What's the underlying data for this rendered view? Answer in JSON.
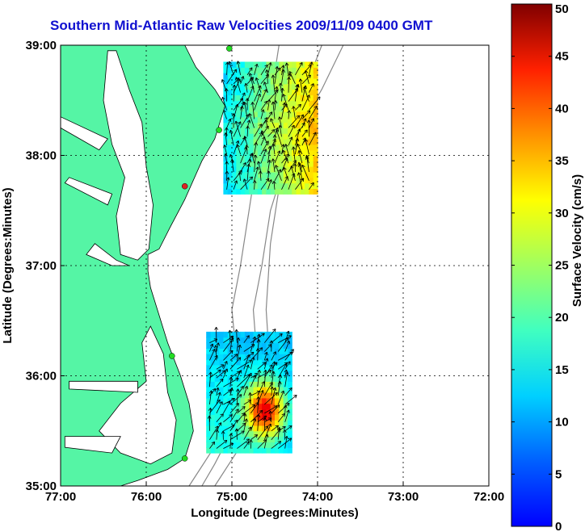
{
  "title": "Southern Mid-Atlantic Raw Velocities 2009/11/09 0400 GMT",
  "map": {
    "xlabel": "Longitude (Degrees:Minutes)",
    "ylabel": "Latitude (Degrees:Minutes)",
    "x_ticks": [
      "77:00",
      "76:00",
      "75:00",
      "74:00",
      "73:00",
      "72:00"
    ],
    "y_ticks": [
      "39:00",
      "38:00",
      "37:00",
      "36:00",
      "35:00"
    ],
    "lon_range": [
      -77,
      -72
    ],
    "lat_range": [
      35,
      39
    ],
    "grid": true,
    "land_color": "#55f5a5",
    "ocean_color": "#ffffff",
    "station_color_active": "#22dd22",
    "station_color_inactive": "#dd2222"
  },
  "colorbar": {
    "label": "Surface Velocity (cm/s)",
    "ticks": [
      "0",
      "5",
      "10",
      "15",
      "20",
      "25",
      "30",
      "35",
      "40",
      "45",
      "50"
    ],
    "range": [
      0,
      50
    ],
    "colormap": "jet"
  },
  "chart_data": {
    "type": "heatmap",
    "title": "Southern Mid-Atlantic Raw Velocities 2009/11/09 0400 GMT",
    "xlabel": "Longitude (Degrees:Minutes)",
    "ylabel": "Latitude (Degrees:Minutes)",
    "xlim": [
      -77,
      -72
    ],
    "ylim": [
      35,
      39
    ],
    "color_range": [
      0,
      50
    ],
    "color_label": "Surface Velocity (cm/s)",
    "stations": [
      {
        "lon": -75.03,
        "lat": 38.97,
        "status": "active"
      },
      {
        "lon": -75.15,
        "lat": 38.23,
        "status": "active"
      },
      {
        "lon": -75.55,
        "lat": 37.72,
        "status": "inactive"
      },
      {
        "lon": -75.7,
        "lat": 36.18,
        "status": "active"
      },
      {
        "lon": -75.55,
        "lat": 35.25,
        "status": "active"
      }
    ],
    "regions": [
      {
        "name_hint": "north",
        "lon_range": [
          -75.1,
          -74.05
        ],
        "lat_range": [
          37.65,
          38.8
        ]
      },
      {
        "name_hint": "south",
        "lon_range": [
          -75.3,
          -74.35
        ],
        "lat_range": [
          35.3,
          36.35
        ]
      }
    ]
  }
}
